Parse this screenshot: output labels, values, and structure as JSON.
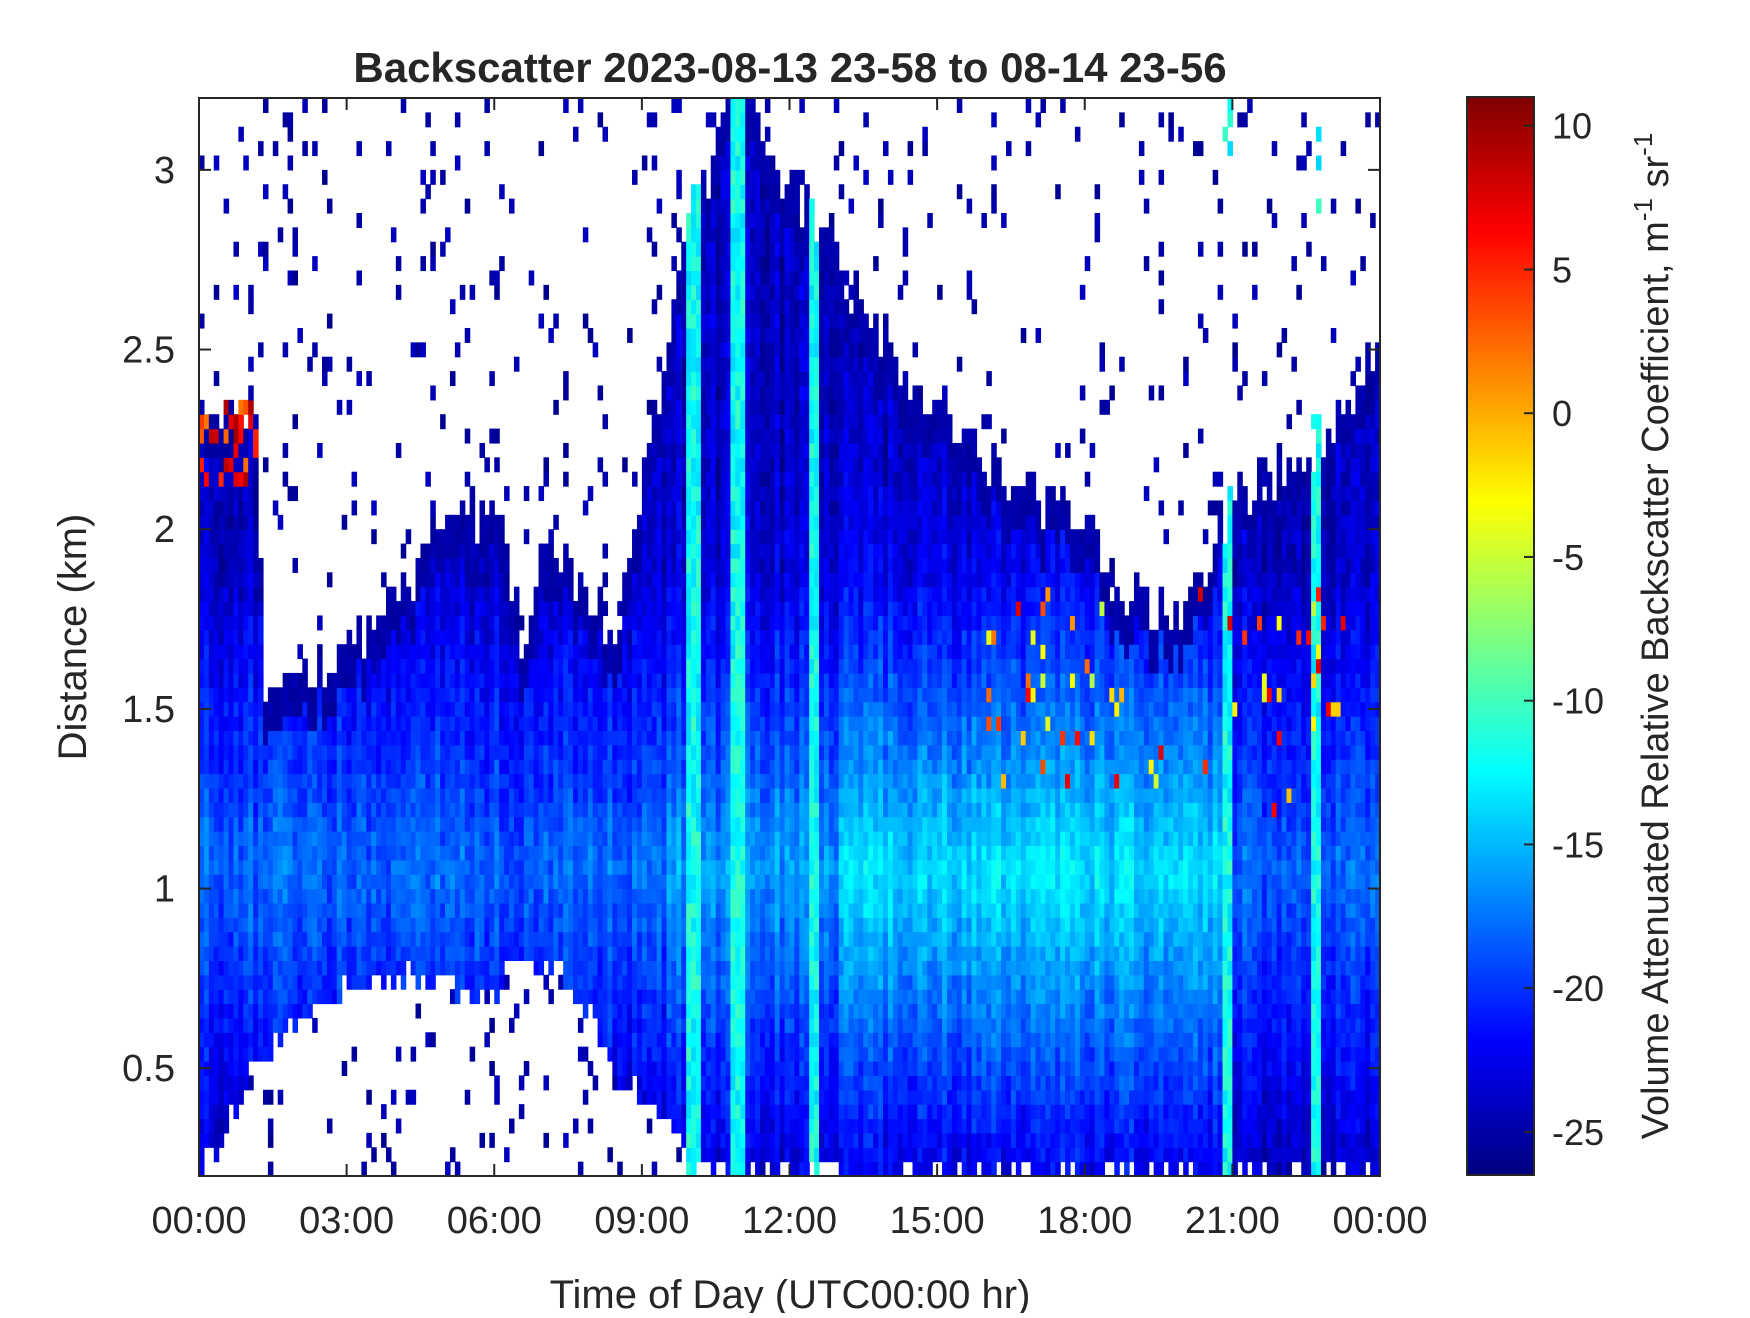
{
  "chart_data": {
    "type": "heatmap",
    "title": "Backscatter 2023-08-13 23-58 to 08-14 23-56",
    "xlabel": "Time of Day (UTC00:00 hr)",
    "ylabel": "Distance (km)",
    "colorbar_label": "Volume Attenuated Relative Backscatter Coefficient, m",
    "colorbar_label_sup1": "-1",
    "colorbar_label_mid": " sr",
    "colorbar_label_sup2": "-1",
    "x_range_hours": [
      0,
      24
    ],
    "y_range_km": [
      0.2,
      3.2
    ],
    "x_ticks": [
      {
        "value": 0,
        "label": "00:00"
      },
      {
        "value": 3,
        "label": "03:00"
      },
      {
        "value": 6,
        "label": "06:00"
      },
      {
        "value": 9,
        "label": "09:00"
      },
      {
        "value": 12,
        "label": "12:00"
      },
      {
        "value": 15,
        "label": "15:00"
      },
      {
        "value": 18,
        "label": "18:00"
      },
      {
        "value": 21,
        "label": "21:00"
      },
      {
        "value": 24,
        "label": "00:00"
      }
    ],
    "y_ticks": [
      {
        "value": 0.5,
        "label": "0.5"
      },
      {
        "value": 1,
        "label": "1"
      },
      {
        "value": 1.5,
        "label": "1.5"
      },
      {
        "value": 2,
        "label": "2"
      },
      {
        "value": 2.5,
        "label": "2.5"
      },
      {
        "value": 3,
        "label": "3"
      }
    ],
    "color_range": [
      -26.5,
      11
    ],
    "color_ticks": [
      {
        "value": 10,
        "label": "10"
      },
      {
        "value": 5,
        "label": "5"
      },
      {
        "value": 0,
        "label": "0"
      },
      {
        "value": -5,
        "label": "-5"
      },
      {
        "value": -10,
        "label": "-10"
      },
      {
        "value": -15,
        "label": "-15"
      },
      {
        "value": -20,
        "label": "-20"
      },
      {
        "value": -25,
        "label": "-25"
      }
    ],
    "colormap": "jet",
    "colormap_stops": [
      "#00007f",
      "#0000ff",
      "#007fff",
      "#00ffff",
      "#7fff7f",
      "#ffff00",
      "#ff7f00",
      "#ff0000",
      "#7f0000"
    ],
    "approx_signal_top_km": [
      [
        0,
        2.35
      ],
      [
        1.2,
        2.3
      ],
      [
        1.3,
        1.6
      ],
      [
        3,
        1.65
      ],
      [
        4.5,
        1.9
      ],
      [
        5,
        2.1
      ],
      [
        6.2,
        2.0
      ],
      [
        6.6,
        1.6
      ],
      [
        7,
        2.0
      ],
      [
        8.5,
        1.7
      ],
      [
        9,
        2.1
      ],
      [
        10,
        2.9
      ],
      [
        11,
        3.2
      ],
      [
        14,
        2.5
      ],
      [
        16,
        2.2
      ],
      [
        18,
        2.0
      ],
      [
        19,
        1.8
      ],
      [
        20,
        1.75
      ],
      [
        21,
        2.1
      ],
      [
        22.5,
        2.2
      ],
      [
        24,
        2.5
      ]
    ],
    "approx_signal_bottom_km": [
      [
        0,
        0.2
      ],
      [
        1.3,
        0.55
      ],
      [
        3,
        0.75
      ],
      [
        4.5,
        0.75
      ],
      [
        6,
        0.7
      ],
      [
        6.5,
        0.8
      ],
      [
        7.5,
        0.75
      ],
      [
        8.5,
        0.5
      ],
      [
        9.5,
        0.35
      ],
      [
        10,
        0.2
      ],
      [
        24,
        0.2
      ]
    ],
    "bright_layer_center_km": 1.05,
    "notes_visible_features": "high values (red/yellow) near 00:00-01:00 at 2.2 km and scattered 16:00-23:30 at 1.2-1.8 km"
  }
}
